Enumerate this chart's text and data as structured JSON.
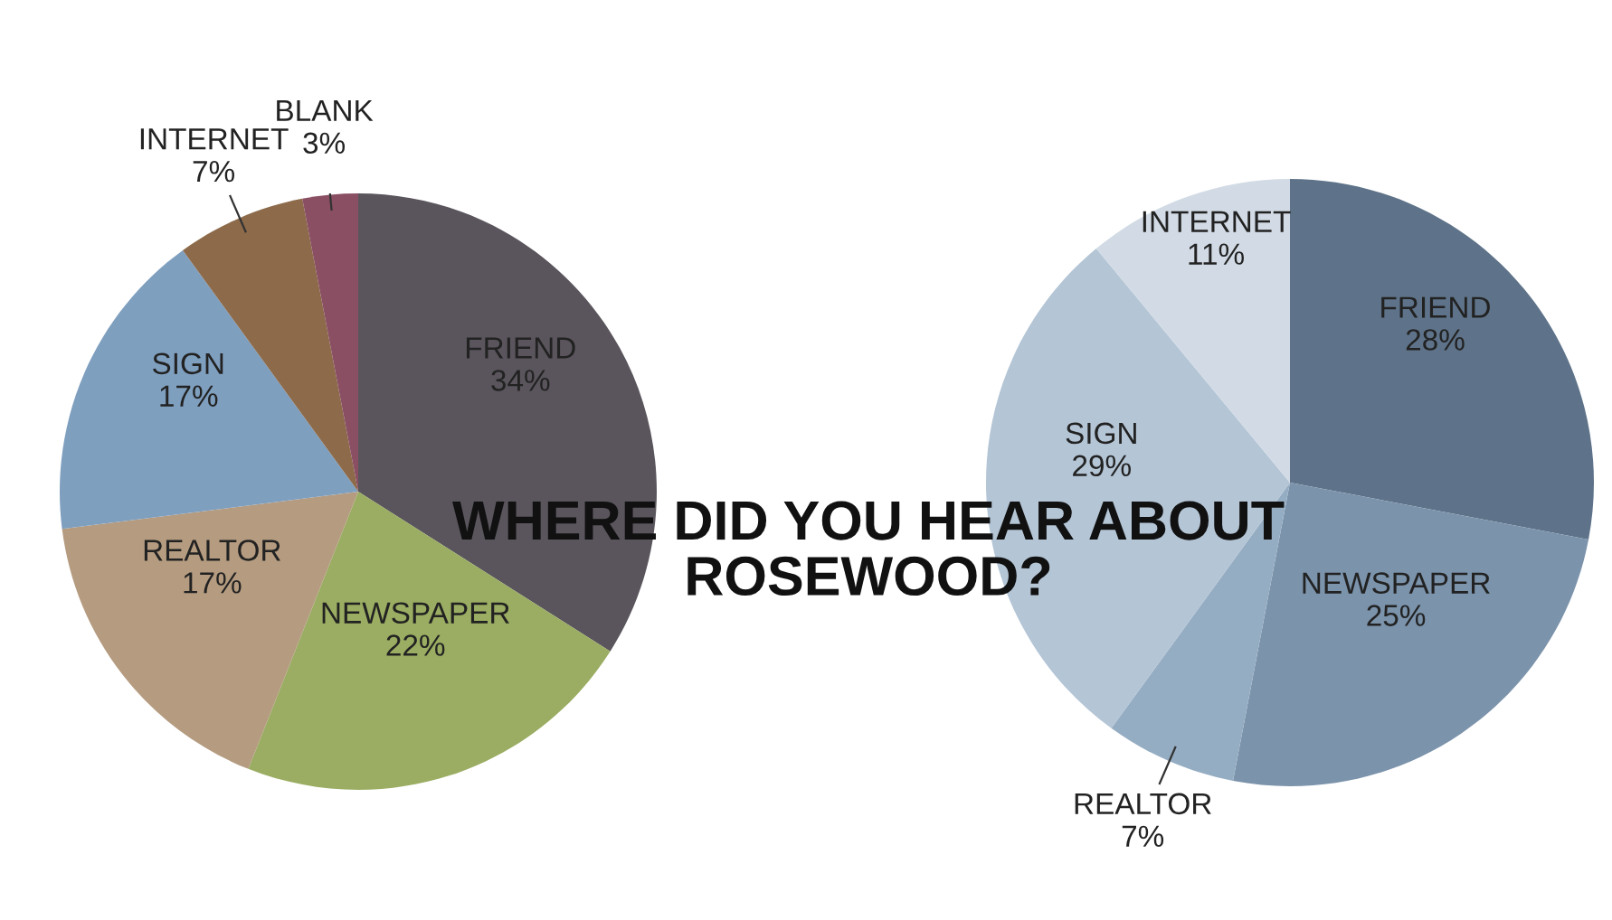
{
  "chart_data": [
    {
      "type": "pie",
      "title": "WHERE DID YOU HEAR ABOUT ROSEWOOD?",
      "categories": [
        "FRIEND",
        "NEWSPAPER",
        "REALTOR",
        "SIGN",
        "INTERNET",
        "BLANK"
      ],
      "values": [
        34,
        22,
        17,
        17,
        7,
        3
      ],
      "value_labels": [
        "34%",
        "22%",
        "17%",
        "17%",
        "7%",
        "3%"
      ],
      "colors": [
        "#5a555c",
        "#9aad62",
        "#b59c80",
        "#7f9fbf",
        "#8c6a4a",
        "#8a4f63"
      ]
    },
    {
      "type": "pie",
      "categories": [
        "FRIEND",
        "NEWSPAPER",
        "REALTOR",
        "SIGN",
        "INTERNET"
      ],
      "values": [
        28,
        25,
        7,
        29,
        11
      ],
      "value_labels": [
        "28%",
        "25%",
        "7%",
        "29%",
        "11%"
      ],
      "colors": [
        "#5e7389",
        "#7b93ab",
        "#95adc3",
        "#b4c5d6",
        "#d2dbe5"
      ]
    }
  ]
}
